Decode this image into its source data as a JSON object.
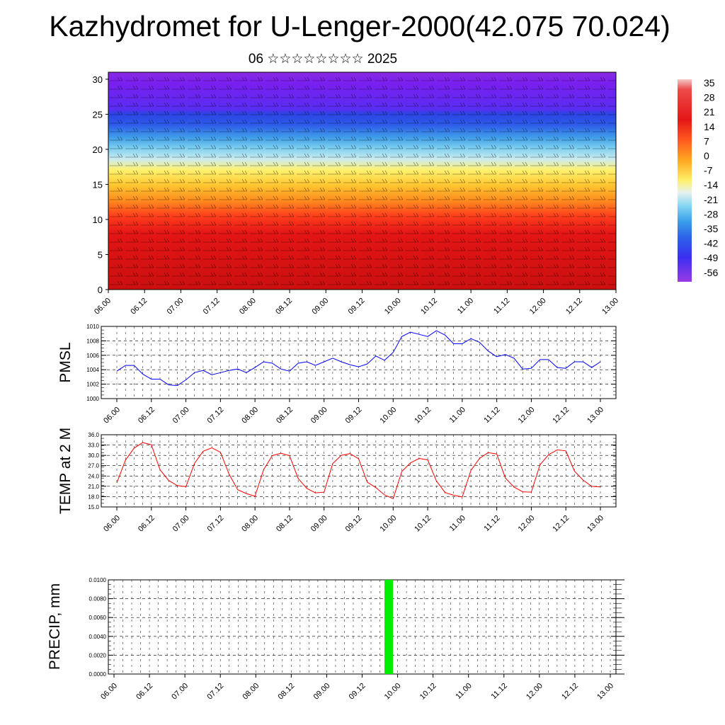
{
  "title": "Kazhydromet for U-Lenger-2000(42.075 70.024)",
  "subtitle": "06 ☆☆☆☆☆☆☆☆ 2025",
  "time_ticks": [
    "06.00",
    "06.12",
    "07.00",
    "07.12",
    "08.00",
    "08.12",
    "09.00",
    "09.12",
    "10.00",
    "10.12",
    "11.00",
    "11.12",
    "12.00",
    "12.12",
    "13.00"
  ],
  "colors": {
    "pmsl_line": "#0000ff",
    "temp_line": "#ff0000",
    "precip_bar": "#00ee00"
  },
  "chart_data": [
    {
      "type": "heatmap",
      "title": "",
      "xlabel": "",
      "ylabel": "",
      "y_ticks": [
        "0",
        "5",
        "10",
        "15",
        "20",
        "25",
        "30"
      ],
      "ylim": [
        0,
        31
      ],
      "colorbar": {
        "labels": [
          "35",
          "28",
          "21",
          "14",
          "7",
          "0",
          "-7",
          "-14",
          "-21",
          "-28",
          "-35",
          "-42",
          "-49",
          "-56"
        ],
        "range": [
          -60,
          38
        ]
      },
      "overlay": "wind barbs",
      "note_levels": "temperature (°C) decreases with height from about 28 near the surface to about -56 near 25"
    },
    {
      "type": "line",
      "ylabel": "PMSL",
      "ylim": [
        1000,
        1010
      ],
      "y_ticks": [
        "1000",
        "1002",
        "1004",
        "1006",
        "1008",
        "1010"
      ],
      "x_ticks": [
        "06.00",
        "06.12",
        "07.00",
        "07.12",
        "08.00",
        "08.12",
        "09.00",
        "09.12",
        "10.00",
        "10.12",
        "11.00",
        "11.12",
        "12.00",
        "12.12",
        "13.00"
      ],
      "x_hours": [
        0,
        3,
        6,
        9,
        12,
        15,
        18,
        21,
        24,
        27,
        30,
        33,
        36,
        39,
        42,
        45,
        48,
        51,
        54,
        57,
        60,
        63,
        66,
        69,
        72,
        75,
        78,
        81,
        84,
        87,
        90,
        93,
        96,
        99,
        102,
        105,
        108,
        111,
        114,
        117,
        120,
        123,
        126,
        129,
        132,
        135,
        138,
        141,
        144,
        147,
        150,
        153,
        156,
        159,
        162,
        165,
        168
      ],
      "series": [
        {
          "values": [
            1003.8,
            1004.6,
            1004.6,
            1003.4,
            1002.7,
            1002.7,
            1001.9,
            1001.8,
            1002.6,
            1003.6,
            1003.9,
            1003.3,
            1003.6,
            1003.9,
            1004.1,
            1003.6,
            1004.3,
            1005.1,
            1004.9,
            1004.1,
            1003.8,
            1004.9,
            1005.1,
            1004.6,
            1005.1,
            1005.6,
            1005.1,
            1004.7,
            1004.4,
            1004.8,
            1005.9,
            1005.3,
            1006.4,
            1008.6,
            1009.2,
            1008.9,
            1008.6,
            1009.4,
            1008.8,
            1007.6,
            1007.6,
            1008.3,
            1007.8,
            1006.6,
            1005.8,
            1006.1,
            1005.6,
            1004.1,
            1004.2,
            1005.4,
            1005.4,
            1004.3,
            1004.2,
            1005.1,
            1005.1,
            1004.3,
            1005.1
          ]
        }
      ]
    },
    {
      "type": "line",
      "ylabel": "TEMP at 2 M",
      "ylim": [
        15,
        36
      ],
      "y_ticks": [
        "15.0",
        "18.0",
        "21.0",
        "24.0",
        "27.0",
        "30.0",
        "33.0",
        "36.0"
      ],
      "x_ticks": [
        "06.00",
        "06.12",
        "07.00",
        "07.12",
        "08.00",
        "08.12",
        "09.00",
        "09.12",
        "10.00",
        "10.12",
        "11.00",
        "11.12",
        "12.00",
        "12.12",
        "13.00"
      ],
      "x_hours": [
        0,
        3,
        6,
        9,
        12,
        15,
        18,
        21,
        24,
        27,
        30,
        33,
        36,
        39,
        42,
        45,
        48,
        51,
        54,
        57,
        60,
        63,
        66,
        69,
        72,
        75,
        78,
        81,
        84,
        87,
        90,
        93,
        96,
        99,
        102,
        105,
        108,
        111,
        114,
        117,
        120,
        123,
        126,
        129,
        132,
        135,
        138,
        141,
        144,
        147,
        150,
        153,
        156,
        159,
        162,
        165,
        168
      ],
      "series": [
        {
          "values": [
            22,
            28.6,
            32.1,
            33.7,
            33.1,
            25.8,
            22.7,
            21.2,
            20.9,
            27.7,
            31.2,
            32.2,
            30.9,
            24.5,
            20,
            18.9,
            18.1,
            25.8,
            29.9,
            30.6,
            29.9,
            23.3,
            20.4,
            19.1,
            19.3,
            27.6,
            30,
            30.5,
            29,
            22.2,
            20.6,
            18.5,
            17.4,
            25.3,
            27.8,
            29.1,
            28.7,
            22.6,
            19.2,
            18.4,
            17.9,
            25.6,
            29.1,
            30.8,
            30.4,
            23.4,
            20.8,
            19.4,
            19.3,
            27.2,
            30.2,
            31.6,
            31.3,
            25.4,
            22.8,
            21,
            20.8
          ]
        }
      ]
    },
    {
      "type": "bar",
      "ylabel": "PRECIP, mm",
      "ylim": [
        0,
        0.01
      ],
      "y_ticks": [
        "0.0000",
        "0.0020",
        "0.0040",
        "0.0060",
        "0.0080",
        "0.0100"
      ],
      "x_ticks": [
        "06.00",
        "06.12",
        "07.00",
        "07.12",
        "08.00",
        "08.12",
        "09.00",
        "09.12",
        "10.00",
        "10.12",
        "11.00",
        "11.12",
        "12.00",
        "12.12",
        "13.00"
      ],
      "bars": [
        {
          "x_hour": 93,
          "value": 0.01
        }
      ]
    }
  ]
}
